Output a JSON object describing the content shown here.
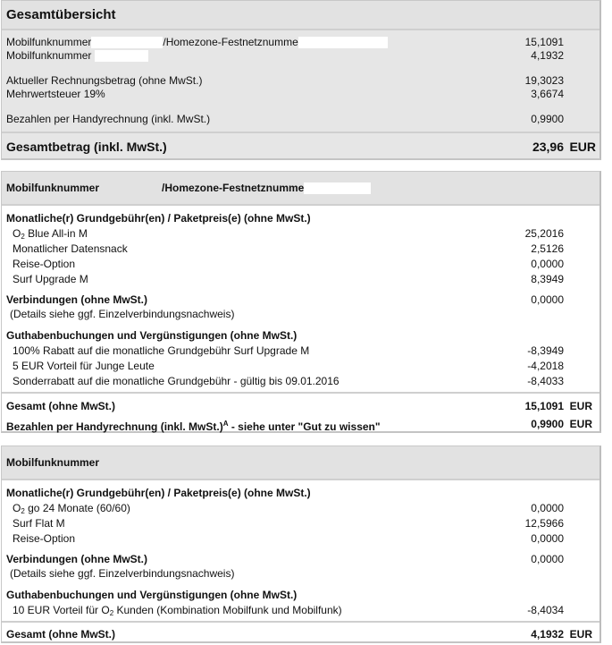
{
  "overview": {
    "title": "Gesamtübersicht",
    "lines": [
      {
        "label_a": "Mobilfunknummer",
        "label_b": "/Homezone-Festnetznumme",
        "value": "15,1091"
      },
      {
        "label_a": "Mobilfunknummer",
        "value": "4,1932"
      },
      {
        "label": "Aktueller Rechnungsbetrag (ohne MwSt.)",
        "value": "19,3023"
      },
      {
        "label": "Mehrwertsteuer 19%",
        "value": "3,6674"
      },
      {
        "label": "Bezahlen per Handyrechnung (inkl. MwSt.)",
        "value": "0,9900"
      }
    ],
    "total_label": "Gesamtbetrag (inkl. MwSt.)",
    "total_value": "23,96",
    "currency": "EUR"
  },
  "contract1": {
    "title_a": "Mobilfunknummer",
    "title_b": "/Homezone-Festnetznumme",
    "fees_heading": "Monatliche(r) Grundgebühr(en) / Paketpreis(e) (ohne MwSt.)",
    "fees": [
      {
        "label_pre": "O",
        "label_sub": "2",
        "label_post": " Blue All-in M",
        "value": "25,2016"
      },
      {
        "label": "Monatlicher Datensnack",
        "value": "2,5126"
      },
      {
        "label": "Reise-Option",
        "value": "0,0000"
      },
      {
        "label": "Surf Upgrade M",
        "value": "8,3949"
      }
    ],
    "connections_heading": "Verbindungen (ohne MwSt.)",
    "connections_value": "0,0000",
    "connections_note": "(Details siehe ggf. Einzelverbindungsnachweis)",
    "credits_heading": "Guthabenbuchungen und Vergünstigungen (ohne MwSt.)",
    "credits": [
      {
        "label": "100% Rabatt auf die monatliche Grundgebühr Surf Upgrade M",
        "value": "-8,3949"
      },
      {
        "label": "5 EUR Vorteil für Junge Leute",
        "value": "-4,2018"
      },
      {
        "label": "Sonderrabatt auf die monatliche Grundgebühr - gültig bis 09.01.2016",
        "value": "-8,4033"
      }
    ],
    "total_label": "Gesamt (ohne MwSt.)",
    "total_value": "15,1091",
    "handy_label": "Bezahlen per Handyrechnung (inkl. MwSt.)",
    "handy_sup": "A",
    "handy_suffix": " - siehe unter \"Gut zu wissen\"",
    "handy_value": "0,9900",
    "currency": "EUR"
  },
  "contract2": {
    "title_a": "Mobilfunknummer",
    "fees_heading": "Monatliche(r) Grundgebühr(en) / Paketpreis(e) (ohne MwSt.)",
    "fees": [
      {
        "label_pre": "O",
        "label_sub": "2",
        "label_post": " go 24 Monate (60/60)",
        "value": "0,0000"
      },
      {
        "label": "Surf Flat M",
        "value": "12,5966"
      },
      {
        "label": "Reise-Option",
        "value": "0,0000"
      }
    ],
    "connections_heading": "Verbindungen (ohne MwSt.)",
    "connections_value": "0,0000",
    "connections_note": "(Details siehe ggf. Einzelverbindungsnachweis)",
    "credits_heading": "Guthabenbuchungen und Vergünstigungen (ohne MwSt.)",
    "credits": [
      {
        "label_pre": "10 EUR Vorteil für O",
        "label_sub": "2",
        "label_post": " Kunden (Kombination Mobilfunk und Mobilfunk)",
        "value": "-8,4034"
      }
    ],
    "total_label": "Gesamt (ohne MwSt.)",
    "total_value": "4,1932",
    "currency": "EUR"
  }
}
